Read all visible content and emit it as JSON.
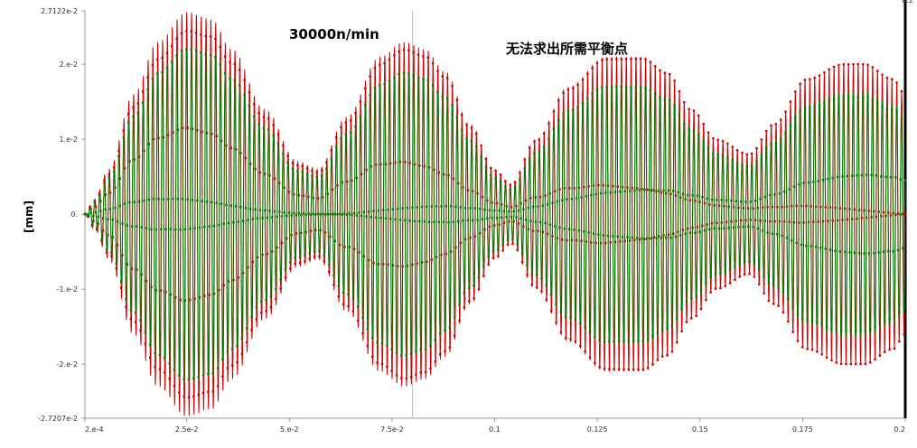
{
  "chart_data": {
    "type": "line",
    "title": "",
    "xlabel": "",
    "ylabel": "[mm]",
    "annotations": {
      "speed": "30000n/min",
      "note": "无法求出所需平衡点"
    },
    "xlim": [
      0.0002,
      0.2
    ],
    "ylim": [
      -0.027207,
      0.027122
    ],
    "x_ticks": [
      {
        "value": 0.0002,
        "label": "2.e-4"
      },
      {
        "value": 0.025,
        "label": "2.5e-2"
      },
      {
        "value": 0.05,
        "label": "5.e-2"
      },
      {
        "value": 0.075,
        "label": "7.5e-2"
      },
      {
        "value": 0.1,
        "label": "0.1"
      },
      {
        "value": 0.125,
        "label": "0.125"
      },
      {
        "value": 0.15,
        "label": "0.15"
      },
      {
        "value": 0.175,
        "label": "0.175"
      },
      {
        "value": 0.2,
        "label": "0.2"
      }
    ],
    "y_ticks": [
      {
        "value": 0.027122,
        "label": "2.7122e-2"
      },
      {
        "value": 0.02,
        "label": "2.e-2"
      },
      {
        "value": 0.01,
        "label": "1.e-2"
      },
      {
        "value": 0.0,
        "label": "0."
      },
      {
        "value": -0.01,
        "label": "-1.e-2"
      },
      {
        "value": -0.02,
        "label": "-2.e-2"
      },
      {
        "value": -0.027207,
        "label": "-2.7207e-2"
      }
    ],
    "cursor_x": 0.08,
    "cursor_label": "0.2",
    "envelope": {
      "x": [
        0.0002,
        0.0025,
        0.006,
        0.012,
        0.018,
        0.025,
        0.031,
        0.036,
        0.044,
        0.052,
        0.057,
        0.064,
        0.072,
        0.078,
        0.083,
        0.088,
        0.094,
        0.1,
        0.104,
        0.11,
        0.118,
        0.127,
        0.136,
        0.142,
        0.148,
        0.154,
        0.162,
        0.168,
        0.176,
        0.185,
        0.19,
        0.197,
        0.2
      ],
      "amplitude": [
        0.0,
        0.002,
        0.006,
        0.016,
        0.023,
        0.027,
        0.026,
        0.022,
        0.014,
        0.007,
        0.006,
        0.013,
        0.021,
        0.023,
        0.022,
        0.019,
        0.012,
        0.006,
        0.004,
        0.01,
        0.017,
        0.021,
        0.021,
        0.019,
        0.014,
        0.01,
        0.008,
        0.012,
        0.018,
        0.02,
        0.02,
        0.018,
        0.016
      ]
    },
    "oscillation_frequency_hz": 850,
    "series": [
      {
        "name": "",
        "color": "#cc0000",
        "role": "outer trace",
        "scale": 1.0
      },
      {
        "name": "",
        "color": "#007a00",
        "role": "inner trace",
        "scale": 0.82
      }
    ]
  }
}
